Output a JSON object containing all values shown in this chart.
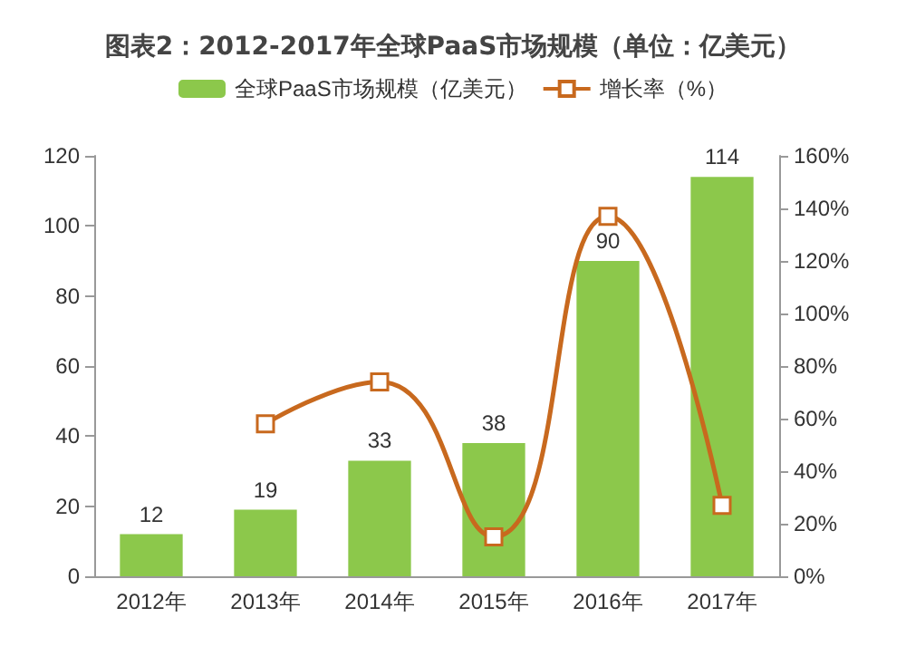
{
  "chart_data": {
    "type": "bar",
    "title": "图表2：2012-2017年全球PaaS市场规模（单位：亿美元）",
    "categories": [
      "2012年",
      "2013年",
      "2014年",
      "2015年",
      "2016年",
      "2017年"
    ],
    "series": [
      {
        "name": "全球PaaS市场规模（亿美元）",
        "color": "#8cc84b",
        "values": [
          12,
          19,
          33,
          38,
          90,
          114
        ],
        "data_labels": true
      },
      {
        "name": "增长率（%）",
        "type": "line",
        "axis": "y2",
        "color": "#c8691e",
        "marker": "square",
        "values": [
          null,
          58,
          74,
          15,
          137,
          27
        ]
      }
    ],
    "ylim": [
      0,
      120
    ],
    "yticks": [
      0,
      20,
      40,
      60,
      80,
      100,
      120
    ],
    "y2lim": [
      0,
      160
    ],
    "y2ticks": [
      {
        "value": 0,
        "label": "0%"
      },
      {
        "value": 20,
        "label": "20%"
      },
      {
        "value": 40,
        "label": "40%"
      },
      {
        "value": 60,
        "label": "60%"
      },
      {
        "value": 80,
        "label": "80%"
      },
      {
        "value": 100,
        "label": "100%"
      },
      {
        "value": 120,
        "label": "120%"
      },
      {
        "value": 140,
        "label": "140%"
      },
      {
        "value": 160,
        "label": "160%"
      }
    ],
    "grid": false,
    "legend": "top"
  }
}
